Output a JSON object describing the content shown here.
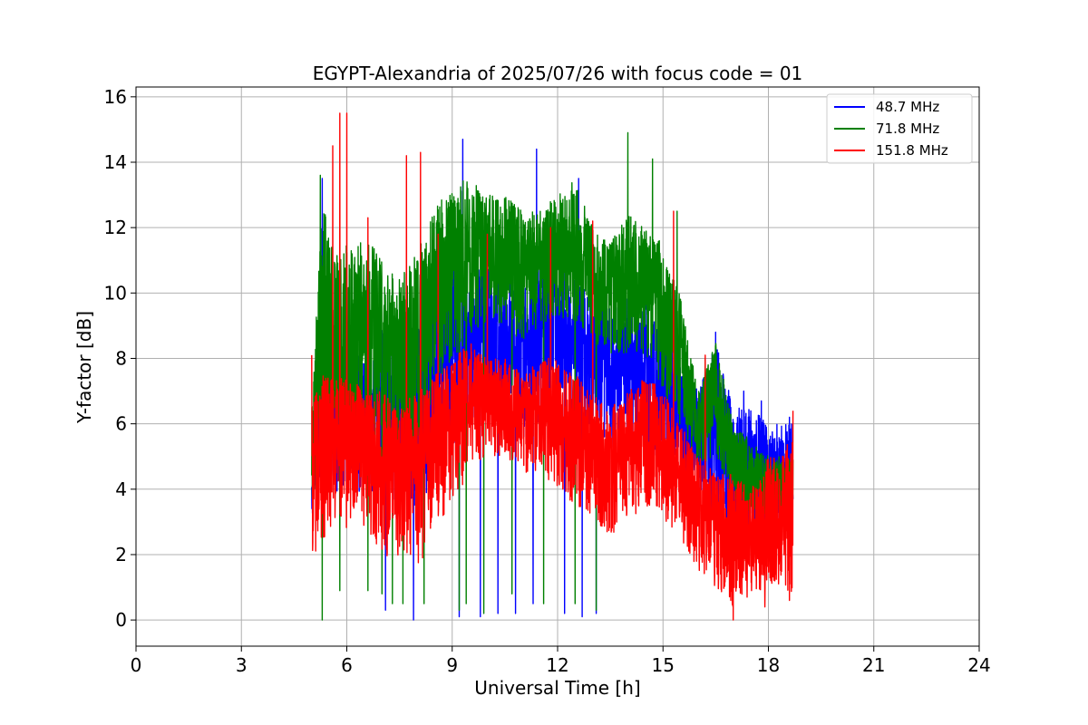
{
  "chart_data": {
    "type": "line",
    "title": "EGYPT-Alexandria of 2025/07/26 with focus code = 01",
    "xlabel": "Universal Time [h]",
    "ylabel": "Y-factor [dB]",
    "xlim": [
      0,
      24
    ],
    "ylim": [
      -0.8,
      16.3
    ],
    "x_ticks": [
      0,
      3,
      6,
      9,
      12,
      15,
      18,
      21,
      24
    ],
    "y_ticks": [
      0,
      2,
      4,
      6,
      8,
      10,
      12,
      14,
      16
    ],
    "grid": true,
    "legend_position": "top-right",
    "series": [
      {
        "name": "  48.7 MHz",
        "color": "#0000ff",
        "envelope": {
          "x": [
            5.0,
            5.3,
            5.6,
            6.0,
            6.5,
            7.0,
            7.5,
            8.0,
            8.5,
            9.0,
            9.5,
            10.0,
            10.5,
            11.0,
            11.5,
            12.0,
            12.5,
            13.0,
            13.5,
            14.0,
            14.5,
            15.0,
            15.5,
            16.0,
            16.5,
            17.0,
            17.5,
            18.0,
            18.7
          ],
          "low": [
            3.0,
            4.0,
            3.5,
            4.0,
            3.5,
            3.5,
            3.0,
            3.5,
            4.0,
            5.0,
            5.5,
            6.0,
            6.0,
            5.5,
            6.0,
            6.0,
            6.0,
            5.5,
            5.0,
            5.0,
            5.0,
            4.5,
            4.0,
            3.5,
            3.0,
            2.5,
            2.5,
            2.5,
            2.5
          ],
          "high": [
            6.0,
            9.0,
            8.0,
            8.5,
            8.0,
            9.0,
            8.5,
            9.0,
            10.0,
            11.0,
            10.5,
            11.0,
            10.5,
            10.0,
            11.0,
            11.0,
            10.5,
            10.0,
            9.5,
            10.0,
            9.5,
            9.0,
            8.0,
            7.0,
            8.5,
            6.5,
            6.5,
            6.0,
            6.0
          ]
        },
        "spikes": [
          [
            5.3,
            13.5
          ],
          [
            9.3,
            14.7
          ],
          [
            11.4,
            14.4
          ],
          [
            12.6,
            13.5
          ],
          [
            14.5,
            10.5
          ],
          [
            16.5,
            8.8
          ],
          [
            17.3,
            7.0
          ],
          [
            17.8,
            6.7
          ],
          [
            18.6,
            6.2
          ]
        ],
        "dips": [
          [
            9.2,
            0.1
          ],
          [
            9.8,
            0.1
          ],
          [
            10.3,
            0.2
          ],
          [
            10.8,
            0.2
          ],
          [
            11.3,
            0.5
          ],
          [
            12.2,
            0.2
          ],
          [
            12.7,
            0.1
          ],
          [
            13.1,
            0.2
          ],
          [
            7.1,
            0.3
          ],
          [
            7.9,
            0.0
          ]
        ]
      },
      {
        "name": "  71.8 MHz",
        "color": "#008000",
        "envelope": {
          "x": [
            5.0,
            5.3,
            5.6,
            6.0,
            6.5,
            7.0,
            7.5,
            8.0,
            8.5,
            9.0,
            9.5,
            10.0,
            10.5,
            11.0,
            11.5,
            12.0,
            12.5,
            13.0,
            13.5,
            14.0,
            14.5,
            15.0,
            15.5,
            16.0,
            16.5,
            17.0,
            17.5,
            18.0,
            18.7
          ],
          "low": [
            3.0,
            5.0,
            5.0,
            4.5,
            4.5,
            5.0,
            4.5,
            5.0,
            7.0,
            8.0,
            8.5,
            9.0,
            9.0,
            8.5,
            9.0,
            9.0,
            9.0,
            8.5,
            8.0,
            8.0,
            8.0,
            7.0,
            5.5,
            4.5,
            5.0,
            3.5,
            3.0,
            3.0,
            3.0
          ],
          "high": [
            6.5,
            12.8,
            11.5,
            11.5,
            12.0,
            11.0,
            10.5,
            11.5,
            12.5,
            13.5,
            13.5,
            13.0,
            13.0,
            12.5,
            12.5,
            13.0,
            13.5,
            12.0,
            11.5,
            12.5,
            12.0,
            11.5,
            10.0,
            7.0,
            8.5,
            6.0,
            5.5,
            5.0,
            5.0
          ]
        },
        "spikes": [
          [
            5.25,
            13.6
          ],
          [
            9.4,
            14.0
          ],
          [
            14.0,
            14.9
          ],
          [
            14.7,
            14.1
          ],
          [
            15.4,
            12.5
          ],
          [
            16.2,
            8.0
          ]
        ],
        "dips": [
          [
            5.3,
            0.0
          ],
          [
            5.8,
            0.9
          ],
          [
            6.6,
            0.9
          ],
          [
            7.0,
            0.8
          ],
          [
            7.3,
            0.5
          ],
          [
            7.6,
            0.5
          ],
          [
            8.2,
            0.5
          ],
          [
            9.2,
            0.3
          ],
          [
            9.4,
            0.5
          ],
          [
            9.9,
            0.2
          ],
          [
            10.7,
            0.8
          ],
          [
            11.6,
            0.5
          ],
          [
            12.5,
            0.5
          ],
          [
            13.1,
            0.3
          ]
        ]
      },
      {
        "name": "151.8 MHz",
        "color": "#ff0000",
        "envelope": {
          "x": [
            5.0,
            5.3,
            5.6,
            6.0,
            6.5,
            7.0,
            7.5,
            8.0,
            8.5,
            9.0,
            9.5,
            10.0,
            10.5,
            11.0,
            11.5,
            12.0,
            12.5,
            13.0,
            13.5,
            14.0,
            14.5,
            15.0,
            15.5,
            16.0,
            16.5,
            17.0,
            17.5,
            18.0,
            18.7
          ],
          "low": [
            1.6,
            2.5,
            2.5,
            2.8,
            2.5,
            2.0,
            1.8,
            1.5,
            2.5,
            3.5,
            4.5,
            5.0,
            5.0,
            4.5,
            4.5,
            4.0,
            3.5,
            3.0,
            2.5,
            3.0,
            3.5,
            3.0,
            2.5,
            1.5,
            1.0,
            0.3,
            0.8,
            0.8,
            0.8
          ],
          "high": [
            6.5,
            7.5,
            7.5,
            7.5,
            7.0,
            7.0,
            6.5,
            7.0,
            7.5,
            8.0,
            8.5,
            8.0,
            8.0,
            7.5,
            8.0,
            8.0,
            7.5,
            7.0,
            6.5,
            7.0,
            7.5,
            7.0,
            6.0,
            5.0,
            4.5,
            4.5,
            4.0,
            5.0,
            5.5
          ]
        },
        "spikes": [
          [
            5.0,
            8.1
          ],
          [
            5.8,
            15.5
          ],
          [
            6.0,
            15.5
          ],
          [
            5.6,
            14.5
          ],
          [
            6.6,
            12.3
          ],
          [
            7.7,
            14.2
          ],
          [
            8.1,
            14.3
          ],
          [
            8.6,
            11.8
          ],
          [
            10.0,
            11.8
          ],
          [
            11.8,
            12.0
          ],
          [
            13.0,
            12.2
          ],
          [
            15.3,
            12.5
          ],
          [
            16.2,
            8.1
          ],
          [
            18.7,
            6.4
          ]
        ],
        "dips": [
          [
            17.0,
            0.0
          ],
          [
            17.9,
            0.4
          ],
          [
            18.6,
            0.6
          ]
        ]
      }
    ]
  }
}
